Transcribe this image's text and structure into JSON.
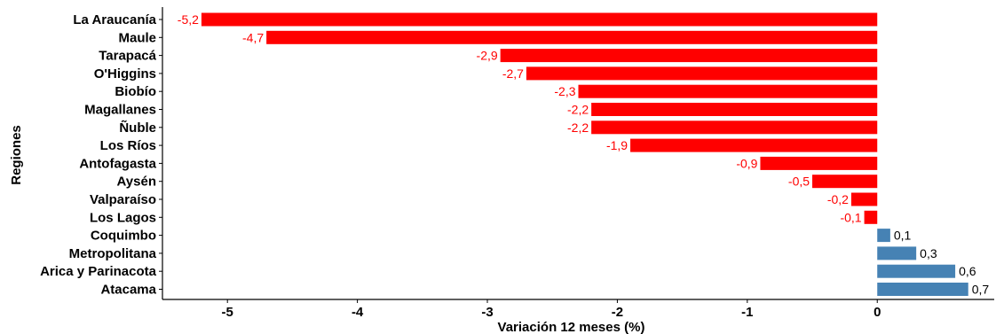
{
  "chart_data": {
    "type": "bar",
    "orientation": "horizontal",
    "xlabel": "Variación 12 meses (%)",
    "ylabel": "Regiones",
    "xlim": [
      -5.5,
      0.9
    ],
    "xticks": [
      -5,
      -4,
      -3,
      -2,
      -1,
      0
    ],
    "grid": false,
    "categories": [
      "La Araucanía",
      "Maule",
      "Tarapacá",
      "O'Higgins",
      "Biobío",
      "Magallanes",
      "Ñuble",
      "Los Ríos",
      "Antofagasta",
      "Aysén",
      "Valparaíso",
      "Los Lagos",
      "Coquimbo",
      "Metropolitana",
      "Arica y Parinacota",
      "Atacama"
    ],
    "values": [
      -5.2,
      -4.7,
      -2.9,
      -2.7,
      -2.3,
      -2.2,
      -2.2,
      -1.9,
      -0.9,
      -0.5,
      -0.2,
      -0.1,
      0.1,
      0.3,
      0.6,
      0.7
    ],
    "labels": [
      "-5,2",
      "-4,7",
      "-2,9",
      "-2,7",
      "-2,3",
      "-2,2",
      "-2,2",
      "-1,9",
      "-0,9",
      "-0,5",
      "-0,2",
      "-0,1",
      "0,1",
      "0,3",
      "0,6",
      "0,7"
    ],
    "colors": {
      "negative": "#ff0000",
      "positive": "#4682b4"
    }
  }
}
